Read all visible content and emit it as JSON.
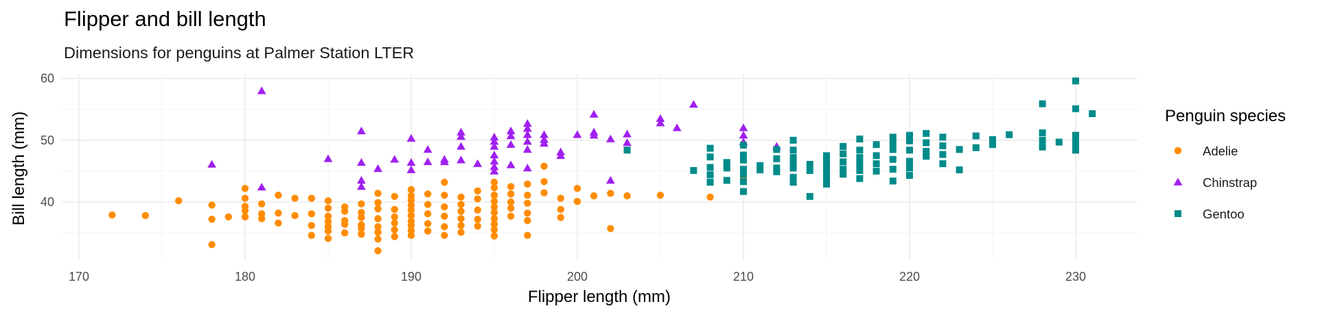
{
  "chart_data": {
    "type": "scatter",
    "title": "Flipper and bill length",
    "subtitle": "Dimensions for penguins at Palmer Station LTER",
    "xlabel": "Flipper length (mm)",
    "ylabel": "Bill length (mm)",
    "xlim": [
      170,
      232
    ],
    "ylim": [
      32,
      60
    ],
    "x_ticks": [
      170,
      180,
      190,
      200,
      210,
      220,
      230
    ],
    "y_ticks": [
      40,
      50,
      60
    ],
    "grid": true,
    "legend": {
      "title": "Penguin species",
      "position": "right"
    },
    "series": [
      {
        "name": "Adelie",
        "color": "#FF8C00",
        "shape": "circle",
        "points": [
          [
            172,
            37.9
          ],
          [
            174,
            37.8
          ],
          [
            176,
            40.2
          ],
          [
            178,
            39.5
          ],
          [
            178,
            37.2
          ],
          [
            178,
            33.1
          ],
          [
            179,
            37.6
          ],
          [
            180,
            42.2
          ],
          [
            180,
            40.6
          ],
          [
            180,
            39.3
          ],
          [
            180,
            38.6
          ],
          [
            180,
            37.6
          ],
          [
            181,
            39.7
          ],
          [
            181,
            38.1
          ],
          [
            181,
            37.3
          ],
          [
            182,
            41.1
          ],
          [
            182,
            38.2
          ],
          [
            182,
            36.6
          ],
          [
            183,
            40.6
          ],
          [
            183,
            37.8
          ],
          [
            184,
            40.6
          ],
          [
            184,
            38.1
          ],
          [
            184,
            36.2
          ],
          [
            184,
            34.6
          ],
          [
            185,
            40.2
          ],
          [
            185,
            39.0
          ],
          [
            185,
            37.7
          ],
          [
            185,
            36.8
          ],
          [
            185,
            36.0
          ],
          [
            185,
            35.3
          ],
          [
            185,
            34.1
          ],
          [
            186,
            39.2
          ],
          [
            186,
            38.5
          ],
          [
            186,
            37.0
          ],
          [
            186,
            36.4
          ],
          [
            186,
            35.0
          ],
          [
            187,
            39.7
          ],
          [
            187,
            38.3
          ],
          [
            187,
            37.5
          ],
          [
            187,
            36.3
          ],
          [
            187,
            35.7
          ],
          [
            187,
            34.8
          ],
          [
            188,
            41.4
          ],
          [
            188,
            39.9
          ],
          [
            188,
            38.9
          ],
          [
            188,
            37.3
          ],
          [
            188,
            36.0
          ],
          [
            188,
            35.1
          ],
          [
            188,
            34.0
          ],
          [
            188,
            32.1
          ],
          [
            189,
            40.9
          ],
          [
            189,
            38.8
          ],
          [
            189,
            37.6
          ],
          [
            189,
            36.6
          ],
          [
            189,
            35.5
          ],
          [
            189,
            34.4
          ],
          [
            190,
            42.0
          ],
          [
            190,
            41.0
          ],
          [
            190,
            40.3
          ],
          [
            190,
            39.5
          ],
          [
            190,
            38.7
          ],
          [
            190,
            37.8
          ],
          [
            190,
            36.9
          ],
          [
            190,
            36.2
          ],
          [
            190,
            35.4
          ],
          [
            190,
            34.6
          ],
          [
            191,
            41.3
          ],
          [
            191,
            39.6
          ],
          [
            191,
            38.1
          ],
          [
            191,
            36.5
          ],
          [
            191,
            35.3
          ],
          [
            192,
            43.2
          ],
          [
            192,
            41.1
          ],
          [
            192,
            39.2
          ],
          [
            192,
            37.7
          ],
          [
            192,
            36.0
          ],
          [
            192,
            34.6
          ],
          [
            193,
            40.8
          ],
          [
            193,
            39.6
          ],
          [
            193,
            38.5
          ],
          [
            193,
            37.3
          ],
          [
            193,
            36.2
          ],
          [
            193,
            35.1
          ],
          [
            194,
            41.8
          ],
          [
            194,
            40.5
          ],
          [
            194,
            38.7
          ],
          [
            194,
            37.2
          ],
          [
            194,
            36.1
          ],
          [
            195,
            43.2
          ],
          [
            195,
            42.3
          ],
          [
            195,
            41.1
          ],
          [
            195,
            40.1
          ],
          [
            195,
            39.2
          ],
          [
            195,
            38.3
          ],
          [
            195,
            37.3
          ],
          [
            195,
            36.4
          ],
          [
            195,
            35.5
          ],
          [
            195,
            34.5
          ],
          [
            196,
            42.5
          ],
          [
            196,
            41.3
          ],
          [
            196,
            40.0
          ],
          [
            196,
            39.0
          ],
          [
            196,
            37.7
          ],
          [
            197,
            42.9
          ],
          [
            197,
            41.1
          ],
          [
            197,
            39.8
          ],
          [
            197,
            38.2
          ],
          [
            197,
            37.0
          ],
          [
            197,
            34.6
          ],
          [
            198,
            45.8
          ],
          [
            198,
            43.3
          ],
          [
            198,
            41.5
          ],
          [
            199,
            40.6
          ],
          [
            199,
            38.8
          ],
          [
            199,
            37.5
          ],
          [
            200,
            42.2
          ],
          [
            200,
            40.1
          ],
          [
            201,
            41.0
          ],
          [
            202,
            41.4
          ],
          [
            202,
            35.7
          ],
          [
            203,
            41.0
          ],
          [
            205,
            41.1
          ],
          [
            208,
            40.8
          ],
          [
            210,
            44.1
          ]
        ]
      },
      {
        "name": "Chinstrap",
        "color": "#A020F0",
        "shape": "triangle",
        "points": [
          [
            178,
            46.1
          ],
          [
            181,
            58.0
          ],
          [
            181,
            42.4
          ],
          [
            185,
            47.0
          ],
          [
            187,
            51.5
          ],
          [
            187,
            46.4
          ],
          [
            187,
            43.5
          ],
          [
            187,
            42.5
          ],
          [
            188,
            45.4
          ],
          [
            189,
            46.9
          ],
          [
            190,
            50.3
          ],
          [
            190,
            46.4
          ],
          [
            190,
            45.2
          ],
          [
            191,
            48.5
          ],
          [
            191,
            46.5
          ],
          [
            192,
            46.9
          ],
          [
            192,
            46.5
          ],
          [
            193,
            51.3
          ],
          [
            193,
            50.6
          ],
          [
            193,
            49.0
          ],
          [
            193,
            46.8
          ],
          [
            194,
            46.2
          ],
          [
            195,
            50.5
          ],
          [
            195,
            49.8
          ],
          [
            195,
            49.0
          ],
          [
            195,
            47.6
          ],
          [
            195,
            46.6
          ],
          [
            195,
            45.7
          ],
          [
            195,
            45.0
          ],
          [
            196,
            51.5
          ],
          [
            196,
            50.7
          ],
          [
            196,
            49.3
          ],
          [
            196,
            46.0
          ],
          [
            197,
            52.7
          ],
          [
            197,
            51.9
          ],
          [
            197,
            50.9
          ],
          [
            197,
            49.8
          ],
          [
            197,
            48.5
          ],
          [
            197,
            45.5
          ],
          [
            198,
            50.9
          ],
          [
            198,
            50.1
          ],
          [
            198,
            49.5
          ],
          [
            199,
            48.1
          ],
          [
            199,
            47.5
          ],
          [
            200,
            50.9
          ],
          [
            201,
            54.2
          ],
          [
            201,
            51.3
          ],
          [
            201,
            50.8
          ],
          [
            202,
            50.2
          ],
          [
            202,
            43.5
          ],
          [
            203,
            51.0
          ],
          [
            203,
            49.6
          ],
          [
            205,
            53.5
          ],
          [
            205,
            52.8
          ],
          [
            206,
            52.0
          ],
          [
            207,
            55.8
          ],
          [
            210,
            52.0
          ],
          [
            210,
            50.8
          ],
          [
            210,
            49.7
          ],
          [
            212,
            49.0
          ]
        ]
      },
      {
        "name": "Gentoo",
        "color": "#008B8B",
        "shape": "square",
        "points": [
          [
            203,
            48.4
          ],
          [
            207,
            45.1
          ],
          [
            208,
            48.7
          ],
          [
            208,
            47.3
          ],
          [
            208,
            45.6
          ],
          [
            208,
            44.4
          ],
          [
            208,
            43.2
          ],
          [
            209,
            46.4
          ],
          [
            209,
            45.5
          ],
          [
            209,
            43.5
          ],
          [
            210,
            49.2
          ],
          [
            210,
            47.6
          ],
          [
            210,
            46.8
          ],
          [
            210,
            45.3
          ],
          [
            210,
            44.5
          ],
          [
            210,
            43.3
          ],
          [
            210,
            41.7
          ],
          [
            211,
            45.9
          ],
          [
            211,
            45.2
          ],
          [
            212,
            48.5
          ],
          [
            212,
            47.0
          ],
          [
            212,
            45.5
          ],
          [
            212,
            44.9
          ],
          [
            213,
            50.0
          ],
          [
            213,
            48.4
          ],
          [
            213,
            47.2
          ],
          [
            213,
            46.3
          ],
          [
            213,
            45.5
          ],
          [
            213,
            44.0
          ],
          [
            213,
            43.2
          ],
          [
            214,
            46.1
          ],
          [
            214,
            45.1
          ],
          [
            214,
            40.9
          ],
          [
            215,
            47.5
          ],
          [
            215,
            46.7
          ],
          [
            215,
            46.0
          ],
          [
            215,
            45.5
          ],
          [
            215,
            44.8
          ],
          [
            215,
            44.0
          ],
          [
            215,
            42.9
          ],
          [
            216,
            49.0
          ],
          [
            216,
            47.8
          ],
          [
            216,
            46.5
          ],
          [
            216,
            45.3
          ],
          [
            216,
            44.5
          ],
          [
            217,
            50.2
          ],
          [
            217,
            48.4
          ],
          [
            217,
            47.2
          ],
          [
            217,
            46.2
          ],
          [
            217,
            45.1
          ],
          [
            217,
            43.8
          ],
          [
            218,
            49.3
          ],
          [
            218,
            47.5
          ],
          [
            218,
            46.2
          ],
          [
            218,
            45.0
          ],
          [
            219,
            50.5
          ],
          [
            219,
            49.6
          ],
          [
            219,
            48.5
          ],
          [
            219,
            46.9
          ],
          [
            219,
            45.3
          ],
          [
            219,
            43.4
          ],
          [
            220,
            50.8
          ],
          [
            220,
            49.9
          ],
          [
            220,
            48.4
          ],
          [
            220,
            46.6
          ],
          [
            220,
            45.5
          ],
          [
            220,
            44.3
          ],
          [
            221,
            51.1
          ],
          [
            221,
            49.6
          ],
          [
            221,
            48.2
          ],
          [
            221,
            47.4
          ],
          [
            222,
            50.5
          ],
          [
            222,
            49.1
          ],
          [
            222,
            47.7
          ],
          [
            222,
            46.2
          ],
          [
            223,
            48.5
          ],
          [
            223,
            45.2
          ],
          [
            224,
            50.7
          ],
          [
            224,
            48.8
          ],
          [
            225,
            50.1
          ],
          [
            225,
            49.3
          ],
          [
            226,
            50.9
          ],
          [
            228,
            55.9
          ],
          [
            228,
            51.2
          ],
          [
            228,
            50.0
          ],
          [
            228,
            48.9
          ],
          [
            229,
            49.7
          ],
          [
            230,
            59.6
          ],
          [
            230,
            55.1
          ],
          [
            230,
            50.8
          ],
          [
            230,
            50.0
          ],
          [
            230,
            49.2
          ],
          [
            230,
            48.4
          ],
          [
            231,
            54.3
          ]
        ]
      }
    ]
  }
}
